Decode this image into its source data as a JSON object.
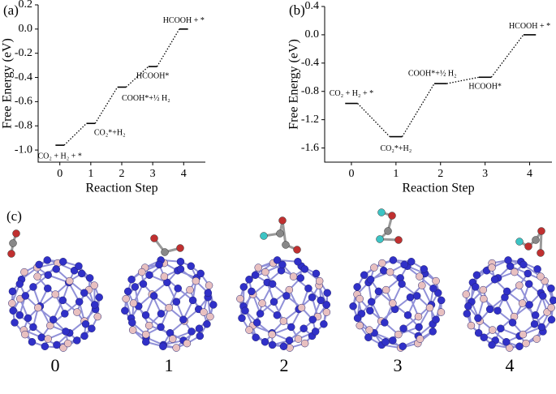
{
  "chart_data": [
    {
      "type": "energy",
      "panel_label": "(a)",
      "ylabel": "Free Energy (eV)",
      "xlabel": "Reaction Step",
      "x": [
        0,
        1,
        2,
        3,
        4
      ],
      "values": [
        -0.96,
        -0.78,
        -0.48,
        -0.31,
        0.0
      ],
      "annotations": [
        "CO₂ + H₂ + *",
        "CO₂*+H₂",
        "COOH*+½ H₂",
        "HCOOH*",
        "HCOOH + *"
      ],
      "xlim": [
        -0.7,
        4.7
      ],
      "xticks": [
        0,
        1,
        2,
        3,
        4
      ],
      "ylim": [
        -1.1,
        0.2
      ],
      "yticks": [
        {
          "value": -1.0,
          "label": "-1.0"
        },
        -0.8,
        -0.6,
        -0.4,
        -0.2,
        {
          "value": 0,
          "label": "0.0"
        },
        0.2
      ],
      "color": "#000000"
    },
    {
      "type": "energy",
      "panel_label": "(b)",
      "ylabel": "Free Energy (eV)",
      "xlabel": "Reaction Step",
      "x": [
        0,
        1,
        2,
        3,
        4
      ],
      "values": [
        -0.97,
        -1.44,
        -0.69,
        -0.6,
        0.0
      ],
      "annotations": [
        "CO₂ + H₂ + *",
        "CO₂*+H₂",
        "COOH*+½ H₂",
        "HCOOH*",
        "HCOOH + *"
      ],
      "xlim": [
        -0.6,
        4.5
      ],
      "xticks": [
        0,
        1,
        2,
        3,
        4
      ],
      "ylim": [
        -1.8,
        0.4
      ],
      "yticks": [
        -1.6,
        -1.2,
        -0.8,
        -0.4,
        {
          "value": 0,
          "label": "0.0"
        },
        0.4
      ],
      "color": "#000000"
    }
  ],
  "panel_c": {
    "panel_label": "(c)",
    "structure_labels": [
      "0",
      "1",
      "2",
      "3",
      "4"
    ]
  }
}
